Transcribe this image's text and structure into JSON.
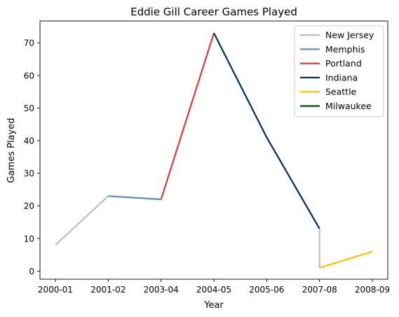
{
  "chart_data": {
    "type": "line",
    "title": "Eddie Gill Career Games Played",
    "xlabel": "Year",
    "ylabel": "Games Played",
    "categories": [
      "2000-01",
      "2001-02",
      "2003-04",
      "2004-05",
      "2005-06",
      "2007-08",
      "2008-09"
    ],
    "ylim": [
      -2.5,
      76.7
    ],
    "yticks": [
      0,
      10,
      20,
      30,
      40,
      50,
      60,
      70
    ],
    "grid": false,
    "legend_position": "top-right",
    "series": [
      {
        "name": "New Jersey",
        "color": "#bdbdbd",
        "points": [
          {
            "x": 0,
            "y": 8
          },
          {
            "x": 1,
            "y": 23
          }
        ]
      },
      {
        "name": "Memphis",
        "color": "#5d88b8",
        "points": [
          {
            "x": 1,
            "y": 23
          },
          {
            "x": 2,
            "y": 22
          }
        ]
      },
      {
        "name": "Portland",
        "color": "#e03a3e",
        "points": [
          {
            "x": 2,
            "y": 22
          },
          {
            "x": 3,
            "y": 73
          }
        ]
      },
      {
        "name": "Indiana",
        "color": "#002d62",
        "points": [
          {
            "x": 3,
            "y": 73
          },
          {
            "x": 4,
            "y": 41
          },
          {
            "x": 5,
            "y": 13
          }
        ]
      },
      {
        "name": "New Jersey",
        "color": "#bdbdbd",
        "points": [
          {
            "x": 5,
            "y": 13
          },
          {
            "x": 5,
            "y": 1
          }
        ],
        "legend": false
      },
      {
        "name": "Seattle",
        "color": "#ffc200",
        "points": [
          {
            "x": 5,
            "y": 1
          },
          {
            "x": 6,
            "y": 6
          }
        ]
      },
      {
        "name": "Milwaukee",
        "color": "#00471b",
        "points": [],
        "legend": true
      }
    ],
    "legend": [
      "New Jersey",
      "Memphis",
      "Portland",
      "Indiana",
      "Seattle",
      "Milwaukee"
    ]
  }
}
